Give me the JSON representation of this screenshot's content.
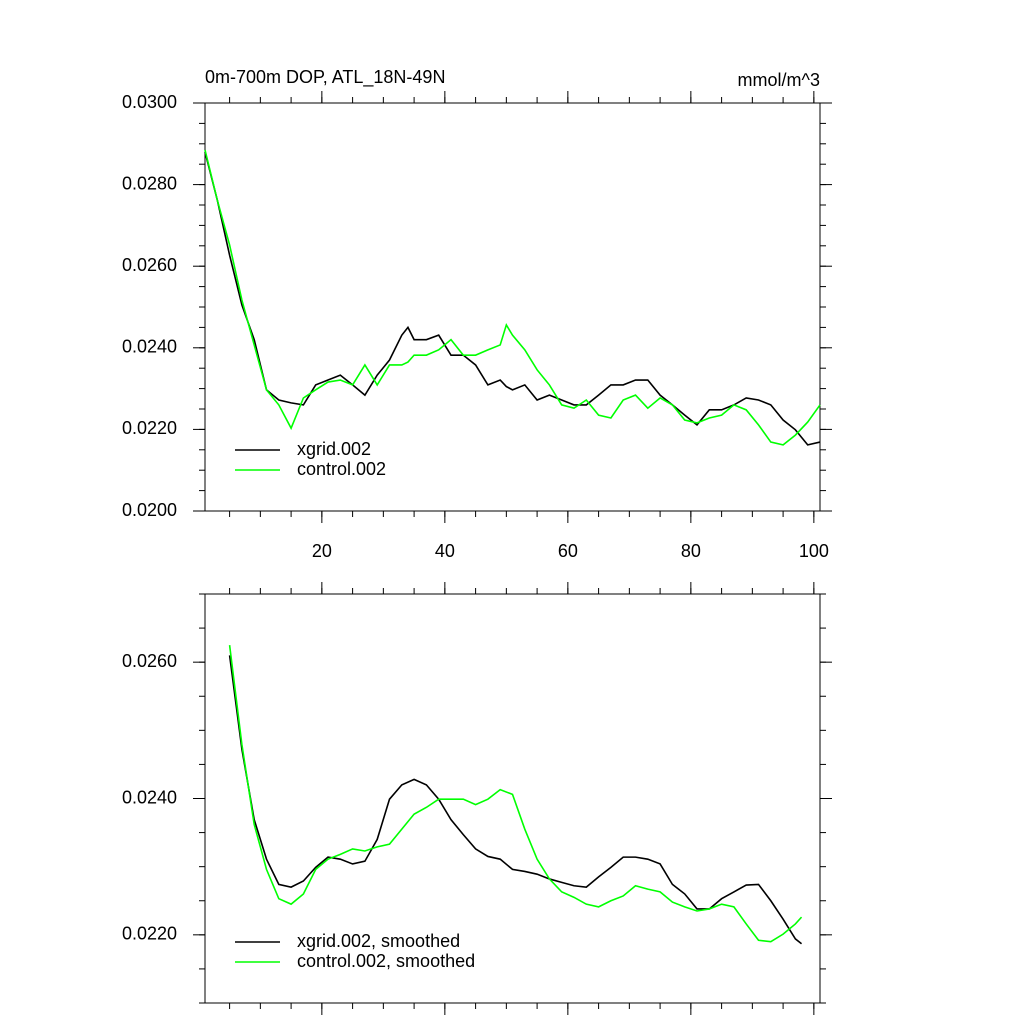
{
  "chart_data": [
    {
      "type": "line",
      "title": "0m-700m DOP, ATL_18N-49N",
      "units": "mmol/m^3",
      "x": [
        1,
        3,
        5,
        7,
        9,
        11,
        13,
        15,
        17,
        19,
        21,
        23,
        25,
        27,
        29,
        31,
        33,
        34,
        35,
        37,
        39,
        41,
        43,
        45,
        47,
        49,
        50,
        51,
        53,
        55,
        57,
        59,
        61,
        63,
        65,
        67,
        69,
        71,
        73,
        75,
        77,
        79,
        81,
        83,
        85,
        87,
        89,
        91,
        93,
        95,
        97,
        99,
        101
      ],
      "series": [
        {
          "name": "xgrid.002",
          "color": "#000000",
          "values": [
            0.0288,
            0.02762,
            0.02627,
            0.02505,
            0.0242,
            0.02297,
            0.02272,
            0.02265,
            0.0226,
            0.02309,
            0.02321,
            0.02333,
            0.02309,
            0.02284,
            0.02333,
            0.0237,
            0.02431,
            0.0245,
            0.0242,
            0.0242,
            0.02431,
            0.02382,
            0.02382,
            0.02358,
            0.02309,
            0.02321,
            0.02305,
            0.02297,
            0.02309,
            0.02272,
            0.02284,
            0.02272,
            0.0226,
            0.0226,
            0.02284,
            0.02309,
            0.02309,
            0.02321,
            0.02321,
            0.02284,
            0.0226,
            0.02235,
            0.02211,
            0.02248,
            0.02248,
            0.0226,
            0.02277,
            0.02272,
            0.0226,
            0.02223,
            0.02199,
            0.02162,
            0.02169
          ]
        },
        {
          "name": "control.002",
          "color": "#00ff00",
          "values": [
            0.02885,
            0.02762,
            0.02652,
            0.02517,
            0.02407,
            0.02297,
            0.0226,
            0.02203,
            0.02277,
            0.02297,
            0.02316,
            0.02321,
            0.02309,
            0.02358,
            0.02309,
            0.02358,
            0.02358,
            0.02365,
            0.02382,
            0.02382,
            0.02395,
            0.0242,
            0.02382,
            0.02382,
            0.02395,
            0.02407,
            0.02456,
            0.02431,
            0.02395,
            0.02346,
            0.02309,
            0.0226,
            0.02252,
            0.02272,
            0.02235,
            0.02228,
            0.02272,
            0.02284,
            0.02252,
            0.02277,
            0.0226,
            0.02223,
            0.02216,
            0.02228,
            0.02235,
            0.0226,
            0.02248,
            0.02211,
            0.02169,
            0.02162,
            0.02186,
            0.02218,
            0.0226
          ]
        }
      ],
      "xlim": [
        1,
        101
      ],
      "xticks": [
        20,
        40,
        60,
        80,
        100
      ],
      "ylim": [
        0.02,
        0.03
      ],
      "yticks": [
        {
          "value": 0.02,
          "label": "0.0200"
        },
        {
          "value": 0.022,
          "label": "0.0220"
        },
        {
          "value": 0.024,
          "label": "0.0240"
        },
        {
          "value": 0.026,
          "label": "0.0260"
        },
        {
          "value": 0.028,
          "label": "0.0280"
        },
        {
          "value": 0.03,
          "label": "0.0300"
        }
      ],
      "legend": "lower left",
      "grid": false
    },
    {
      "type": "line",
      "x": [
        5,
        7,
        9,
        11,
        13,
        15,
        17,
        19,
        21,
        23,
        25,
        27,
        29,
        31,
        33,
        35,
        37,
        39,
        41,
        43,
        45,
        47,
        49,
        51,
        53,
        55,
        57,
        59,
        61,
        63,
        65,
        67,
        69,
        71,
        73,
        75,
        77,
        79,
        81,
        83,
        85,
        87,
        89,
        91,
        93,
        95,
        97,
        98
      ],
      "series": [
        {
          "name": "xgrid.002, smoothed",
          "color": "#000000",
          "values": [
            0.0261,
            0.02472,
            0.02369,
            0.02311,
            0.02274,
            0.0227,
            0.02279,
            0.02299,
            0.02314,
            0.02311,
            0.02304,
            0.02308,
            0.0234,
            0.02399,
            0.0242,
            0.02428,
            0.0242,
            0.02399,
            0.02369,
            0.02347,
            0.02326,
            0.02315,
            0.02311,
            0.02296,
            0.02293,
            0.02289,
            0.02282,
            0.02277,
            0.02272,
            0.0227,
            0.02285,
            0.02299,
            0.02314,
            0.02314,
            0.02311,
            0.02304,
            0.02274,
            0.0226,
            0.02238,
            0.02238,
            0.02253,
            0.02263,
            0.02273,
            0.02274,
            0.0225,
            0.02223,
            0.02194,
            0.02187
          ]
        },
        {
          "name": "control.002, smoothed",
          "color": "#00ff00",
          "values": [
            0.02625,
            0.02479,
            0.02362,
            0.02296,
            0.02253,
            0.02245,
            0.0226,
            0.02296,
            0.02311,
            0.02318,
            0.02326,
            0.02323,
            0.02329,
            0.02333,
            0.02355,
            0.02377,
            0.02387,
            0.02399,
            0.02399,
            0.02399,
            0.02391,
            0.02399,
            0.02413,
            0.02406,
            0.02355,
            0.02311,
            0.02282,
            0.02263,
            0.02255,
            0.02245,
            0.02241,
            0.0225,
            0.02257,
            0.02272,
            0.02267,
            0.02263,
            0.02248,
            0.02241,
            0.02235,
            0.02238,
            0.02245,
            0.02241,
            0.02216,
            0.02192,
            0.0219,
            0.02201,
            0.02216,
            0.02226
          ]
        }
      ],
      "xlim": [
        1,
        101
      ],
      "xticks": [
        20,
        40,
        60,
        80,
        100
      ],
      "ylim": [
        0.021,
        0.027
      ],
      "yticks": [
        {
          "value": 0.022,
          "label": "0.0220"
        },
        {
          "value": 0.024,
          "label": "0.0240"
        },
        {
          "value": 0.026,
          "label": "0.0260"
        }
      ],
      "legend": "lower left",
      "grid": false
    }
  ]
}
